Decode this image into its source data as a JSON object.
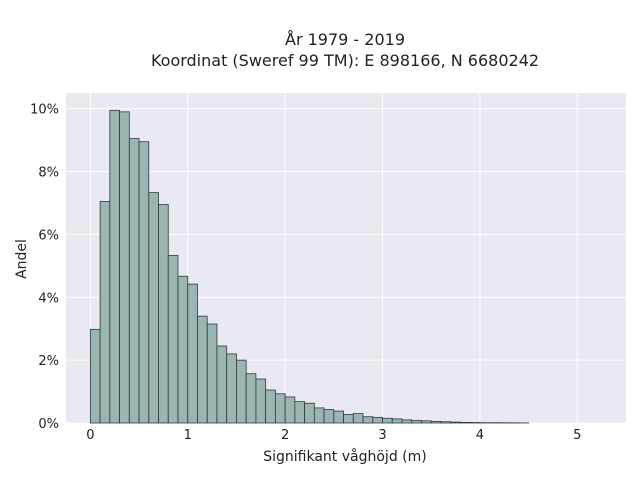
{
  "chart_data": {
    "type": "bar",
    "title": "År 1979 - 2019",
    "subtitle": "Koordinat (Sweref 99 TM): E 898166, N 6680242",
    "xlabel": "Signifikant våghöjd (m)",
    "ylabel": "Andel",
    "xlim": [
      -0.25,
      5.5
    ],
    "ylim": [
      0,
      10.5
    ],
    "x_ticks": [
      0,
      1,
      2,
      3,
      4,
      5
    ],
    "x_tick_labels": [
      "0",
      "1",
      "2",
      "3",
      "4",
      "5"
    ],
    "y_ticks": [
      0,
      2,
      4,
      6,
      8,
      10
    ],
    "y_tick_labels": [
      "0%",
      "2%",
      "4%",
      "6%",
      "8%",
      "10%"
    ],
    "grid": true,
    "bin_width": 0.1,
    "bin_starts": [
      0.0,
      0.1,
      0.2,
      0.3,
      0.4,
      0.5,
      0.6,
      0.7,
      0.8,
      0.9,
      1.0,
      1.1,
      1.2,
      1.3,
      1.4,
      1.5,
      1.6,
      1.7,
      1.8,
      1.9,
      2.0,
      2.1,
      2.2,
      2.3,
      2.4,
      2.5,
      2.6,
      2.7,
      2.8,
      2.9,
      3.0,
      3.1,
      3.2,
      3.3,
      3.4,
      3.5,
      3.6,
      3.7,
      3.8,
      3.9,
      4.0,
      4.1,
      4.2,
      4.3,
      4.4
    ],
    "values": [
      2.98,
      7.05,
      9.95,
      9.9,
      9.05,
      8.95,
      7.33,
      6.95,
      5.33,
      4.67,
      4.42,
      3.4,
      3.15,
      2.45,
      2.2,
      2.0,
      1.57,
      1.4,
      1.05,
      0.93,
      0.83,
      0.68,
      0.63,
      0.48,
      0.43,
      0.38,
      0.27,
      0.3,
      0.2,
      0.18,
      0.15,
      0.13,
      0.1,
      0.08,
      0.07,
      0.05,
      0.04,
      0.03,
      0.02,
      0.015,
      0.01,
      0.01,
      0.008,
      0.005,
      0.003
    ],
    "colors": {
      "bar_fill": "#9bb5b3",
      "bar_edge": "#2f3a39",
      "plot_bg": "#e9e9f1",
      "grid": "#ffffff"
    }
  }
}
